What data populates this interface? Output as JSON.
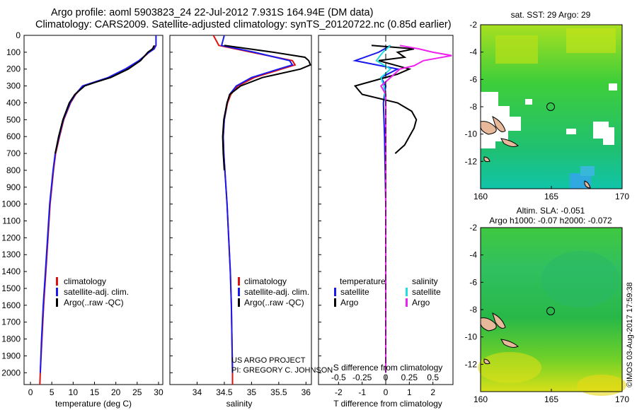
{
  "header": {
    "line1": "Argo profile: aoml 5903823_24 22-Jul-2012 7.931S 164.94E (DM data)",
    "line2": "Climatology: CARS2009. Satellite-adjusted climatology: synTS_20120722.nc (0.85d earlier)"
  },
  "credit": {
    "project": "US ARGO PROJECT",
    "pi": "PI: GREGORY C. JOHNSON",
    "imos": "©IMOS 03-Aug-2017 17:59:38"
  },
  "colors": {
    "climatology": "#dd1111",
    "satellite_adj": "#1a1aee",
    "argo": "#000000",
    "salinity_satellite": "#22dddd",
    "salinity_argo": "#ee22ee"
  },
  "legends": {
    "profile": [
      "climatology",
      "satellite-adj. clim.",
      "Argo(..raw -QC)"
    ],
    "difference": {
      "temperature_head": "temperature",
      "salinity_head": "salinity",
      "satellite": "satellite",
      "argo": "Argo"
    }
  },
  "maps": {
    "top_title": "sat. SST: 29 Argo: 29",
    "bottom_title1": "Altim. SLA: -0.051",
    "bottom_title2": "Argo h1000: -0.07 h2000: -0.072",
    "lon_ticks": [
      "160",
      "165",
      "170"
    ],
    "lat_ticks": [
      "-2",
      "-4",
      "-6",
      "-8",
      "-10",
      "-12"
    ],
    "lon_range": [
      160,
      170
    ],
    "lat_range": [
      -14,
      -2
    ],
    "argo_position": {
      "lon": 164.94,
      "lat": -7.931
    }
  },
  "chart_data": [
    {
      "type": "line",
      "panel": "temperature",
      "xlabel": "temperature (deg C)",
      "ylabel": "",
      "xlim": [
        -1.5,
        31
      ],
      "ylim": [
        2070,
        0
      ],
      "xticks": [
        "0",
        "5",
        "10",
        "15",
        "20",
        "25",
        "30"
      ],
      "yticks": [
        "0",
        "100",
        "200",
        "300",
        "400",
        "500",
        "600",
        "700",
        "800",
        "900",
        "1000",
        "1100",
        "1200",
        "1300",
        "1400",
        "1500",
        "1600",
        "1700",
        "1800",
        "1900",
        "2000"
      ],
      "series": [
        {
          "name": "climatology",
          "depth": [
            60,
            80,
            100,
            150,
            200,
            250,
            280,
            300,
            350,
            400,
            500,
            600,
            700,
            800,
            900,
            1000,
            1200,
            1400,
            1600,
            1800,
            2000,
            2070
          ],
          "values": [
            29.2,
            29.0,
            27.8,
            25.6,
            22.4,
            18.4,
            14.8,
            12.4,
            10.6,
            9.4,
            7.8,
            6.8,
            5.9,
            5.4,
            5.0,
            4.6,
            4.1,
            3.6,
            3.1,
            2.7,
            2.3,
            2.2
          ]
        },
        {
          "name": "satellite-adj. clim.",
          "depth": [
            0,
            60,
            80,
            100,
            150,
            200,
            250,
            280,
            300,
            350,
            400,
            500,
            600,
            700,
            800,
            900,
            1000,
            1200,
            1400,
            1600,
            1800,
            2000
          ],
          "values": [
            29.4,
            29.4,
            29.0,
            27.8,
            25.4,
            22.2,
            18.2,
            14.6,
            12.2,
            10.5,
            9.3,
            7.7,
            6.7,
            5.8,
            5.3,
            4.9,
            4.5,
            4.0,
            3.5,
            3.0,
            2.6,
            2.3
          ]
        },
        {
          "name": "Argo(..raw -QC)",
          "depth": [
            60,
            80,
            100,
            150,
            200,
            250,
            280,
            300,
            350,
            400,
            500,
            600,
            700
          ],
          "values": [
            29.0,
            28.6,
            27.5,
            25.8,
            22.9,
            18.8,
            15.0,
            12.7,
            10.4,
            9.1,
            7.6,
            6.6,
            5.8
          ]
        }
      ],
      "legend": "lower-middle"
    },
    {
      "type": "line",
      "panel": "salinity",
      "xlabel": "salinity",
      "xlim": [
        33.5,
        36.1
      ],
      "ylim": [
        2070,
        0
      ],
      "xticks": [
        "34",
        "34.5",
        "35",
        "35.5",
        "36"
      ],
      "series": [
        {
          "name": "climatology",
          "depth": [
            0,
            60,
            100,
            150,
            175,
            200,
            250,
            300,
            350,
            400,
            500,
            600,
            700,
            800,
            1000,
            1200,
            1400,
            1600,
            1800,
            2000,
            2070
          ],
          "values": [
            34.3,
            34.4,
            35.0,
            35.75,
            35.8,
            35.55,
            35.05,
            34.75,
            34.62,
            34.56,
            34.5,
            34.48,
            34.49,
            34.51,
            34.55,
            34.58,
            34.61,
            34.63,
            34.64,
            34.65,
            34.65
          ]
        },
        {
          "name": "satellite-adj. clim.",
          "depth": [
            0,
            60,
            100,
            150,
            175,
            200,
            250,
            300,
            350,
            400,
            500,
            600,
            700,
            800,
            1000,
            1200,
            1400,
            1600,
            1800,
            2000
          ],
          "values": [
            34.5,
            34.45,
            35.05,
            35.7,
            35.75,
            35.5,
            35.0,
            34.72,
            34.6,
            34.55,
            34.5,
            34.48,
            34.49,
            34.51,
            34.55,
            34.58,
            34.61,
            34.63,
            34.64,
            34.65
          ]
        },
        {
          "name": "Argo(..raw -QC)",
          "depth": [
            60,
            100,
            130,
            150,
            175,
            200,
            250,
            300,
            350,
            400,
            500,
            600,
            700,
            800
          ],
          "values": [
            34.5,
            35.4,
            35.98,
            36.05,
            36.08,
            35.9,
            35.2,
            34.8,
            34.6,
            34.55,
            34.49,
            34.47,
            34.48,
            34.5
          ]
        }
      ],
      "legend": "lower-middle"
    },
    {
      "type": "line",
      "panel": "difference",
      "xlabel": "T difference from climatology",
      "xlabel_top": "S difference from climatology",
      "xlim": [
        -2.85,
        2.85
      ],
      "xticks": [
        "-2",
        "-1",
        "0",
        "1",
        "2"
      ],
      "xticks_top": [
        "-0.5",
        "-0.25",
        "0",
        "0.25",
        "0.5"
      ],
      "series": [
        {
          "name": "temperature satellite",
          "depth": [
            60,
            100,
            150,
            200,
            250,
            300,
            400,
            600,
            1000,
            1400,
            1800,
            2000
          ],
          "values": [
            0.2,
            -0.3,
            -1.3,
            0.5,
            -0.2,
            0.0,
            -0.1,
            -0.05,
            0.0,
            0.0,
            0.0,
            0.0
          ]
        },
        {
          "name": "temperature Argo",
          "depth": [
            60,
            80,
            100,
            130,
            150,
            200,
            230,
            300,
            350,
            400,
            450,
            500,
            550,
            600,
            650,
            700
          ],
          "values": [
            -0.6,
            1.2,
            0.5,
            0.8,
            -0.3,
            1.0,
            0.5,
            -1.3,
            -1.0,
            0.5,
            1.1,
            1.3,
            1.2,
            1.0,
            0.8,
            0.4
          ]
        },
        {
          "name": "salinity satellite",
          "depth": [
            60,
            100,
            150,
            200,
            250,
            300,
            400,
            600,
            1000,
            1400,
            2000
          ],
          "values": [
            0.05,
            -0.03,
            -0.1,
            0.05,
            -0.05,
            -0.02,
            0.0,
            0.0,
            0.0,
            0.0,
            0.0
          ]
        },
        {
          "name": "salinity Argo",
          "depth": [
            60,
            80,
            100,
            120,
            150,
            180,
            200,
            250,
            300,
            350,
            400,
            600,
            1000,
            1400,
            2000
          ],
          "values": [
            0.15,
            0.35,
            0.5,
            0.7,
            0.4,
            0.3,
            0.15,
            0.05,
            -0.05,
            0.0,
            0.0,
            0.0,
            0.0,
            0.0,
            0.0
          ]
        }
      ],
      "legend": "lower-middle"
    }
  ]
}
